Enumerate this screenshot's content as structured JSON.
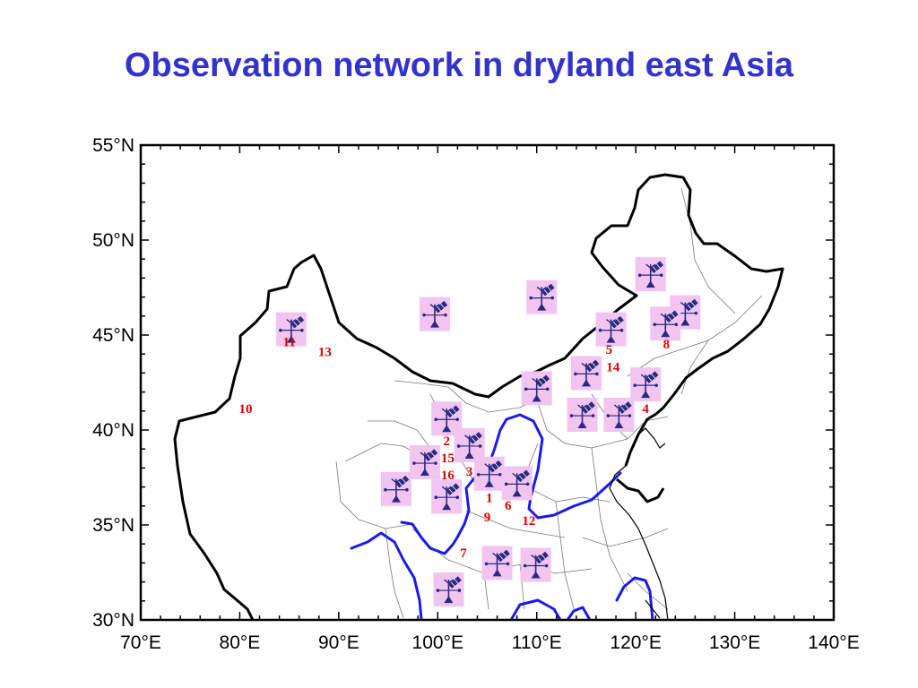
{
  "title": "Observation network in dryland east Asia",
  "map": {
    "lon_range": [
      70,
      140
    ],
    "lat_range": [
      30,
      55
    ],
    "x_ticks": [
      "70°E",
      "80°E",
      "90°E",
      "100°E",
      "110°E",
      "120°E",
      "130°E",
      "140°E"
    ],
    "y_ticks": [
      "55°N",
      "50°N",
      "45°N",
      "40°N",
      "35°N",
      "30°N"
    ],
    "colors": {
      "title": "#3333cc",
      "rivers": "#1a1aee",
      "border": "#000000",
      "provinces": "#777777",
      "site_label": "#e00000",
      "icon_bg": "#f2c4f0",
      "icon_fg": "#2a2a80"
    },
    "icon": "tower-satellite-icon",
    "stations": [
      {
        "lon": 85.2,
        "lat": 45.3
      },
      {
        "lon": 99.7,
        "lat": 46.1
      },
      {
        "lon": 110.5,
        "lat": 47.0
      },
      {
        "lon": 121.5,
        "lat": 48.2
      },
      {
        "lon": 125.0,
        "lat": 46.2
      },
      {
        "lon": 123.0,
        "lat": 45.6
      },
      {
        "lon": 117.5,
        "lat": 45.3
      },
      {
        "lon": 115.0,
        "lat": 43.0
      },
      {
        "lon": 110.0,
        "lat": 42.2
      },
      {
        "lon": 121.0,
        "lat": 42.4
      },
      {
        "lon": 114.6,
        "lat": 40.8
      },
      {
        "lon": 118.3,
        "lat": 40.8
      },
      {
        "lon": 100.9,
        "lat": 40.6
      },
      {
        "lon": 103.2,
        "lat": 39.2
      },
      {
        "lon": 98.7,
        "lat": 38.3
      },
      {
        "lon": 105.2,
        "lat": 37.7
      },
      {
        "lon": 108.0,
        "lat": 37.2
      },
      {
        "lon": 95.8,
        "lat": 36.9
      },
      {
        "lon": 100.9,
        "lat": 36.5
      },
      {
        "lon": 106.0,
        "lat": 33.0
      },
      {
        "lon": 109.9,
        "lat": 32.9
      },
      {
        "lon": 101.1,
        "lat": 31.6
      }
    ],
    "sites": [
      {
        "label": "1",
        "lon": 105.2,
        "lat": 36.2
      },
      {
        "label": "2",
        "lon": 100.9,
        "lat": 39.2
      },
      {
        "label": "3",
        "lon": 103.2,
        "lat": 37.6
      },
      {
        "label": "4",
        "lon": 121.0,
        "lat": 40.9
      },
      {
        "label": "5",
        "lon": 117.3,
        "lat": 44.0
      },
      {
        "label": "6",
        "lon": 107.1,
        "lat": 35.8
      },
      {
        "label": "7",
        "lon": 102.6,
        "lat": 33.3
      },
      {
        "label": "8",
        "lon": 123.1,
        "lat": 44.3
      },
      {
        "label": "9",
        "lon": 105.0,
        "lat": 35.2
      },
      {
        "label": "10",
        "lon": 80.6,
        "lat": 40.9
      },
      {
        "label": "11",
        "lon": 85.0,
        "lat": 44.4
      },
      {
        "label": "12",
        "lon": 109.2,
        "lat": 35.0
      },
      {
        "label": "13",
        "lon": 88.6,
        "lat": 43.9
      },
      {
        "label": "14",
        "lon": 117.7,
        "lat": 43.1
      },
      {
        "label": "15",
        "lon": 101.0,
        "lat": 38.3
      },
      {
        "label": "16",
        "lon": 101.0,
        "lat": 37.4
      }
    ]
  }
}
